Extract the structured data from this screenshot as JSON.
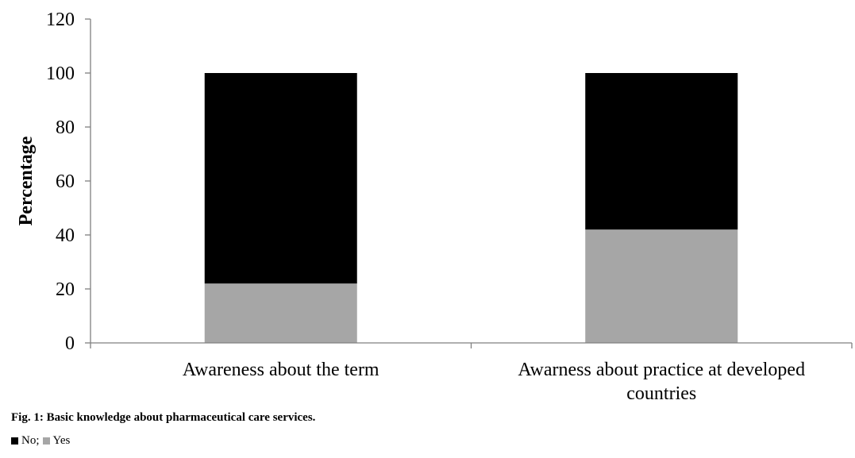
{
  "chart_data": {
    "type": "bar",
    "stacked": true,
    "title": "",
    "xlabel": "",
    "ylabel": "Percentage",
    "ylim": [
      0,
      120
    ],
    "yticks": [
      0,
      20,
      40,
      60,
      80,
      100,
      120
    ],
    "grid": false,
    "categories": [
      [
        "Awareness about the term"
      ],
      [
        "Awarness about practice at developed",
        "countries"
      ]
    ],
    "series": [
      {
        "name": "Yes",
        "color": "#a6a6a6",
        "values": [
          22,
          42
        ]
      },
      {
        "name": "No",
        "color": "#000000",
        "values": [
          78,
          58
        ]
      }
    ]
  },
  "caption": "Fig. 1: Basic knowledge about pharmaceutical care services.",
  "legend": {
    "no_label": "No;",
    "yes_label": "Yes",
    "no_color": "#000000",
    "yes_color": "#a6a6a6"
  }
}
